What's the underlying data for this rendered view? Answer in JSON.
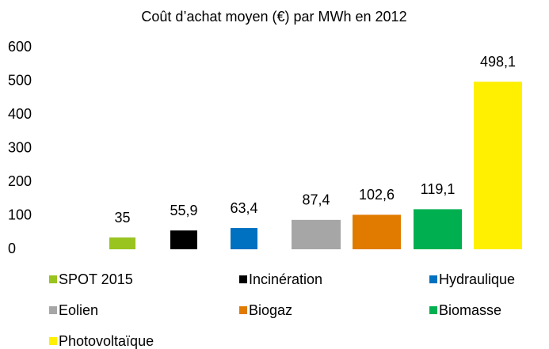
{
  "chart_data": {
    "type": "bar",
    "title": "Coût d’achat moyen (€) par MWh en 2012",
    "ylim": [
      0,
      600
    ],
    "yticks": [
      0,
      100,
      200,
      300,
      400,
      500,
      600
    ],
    "series": [
      {
        "name": "SPOT 2015",
        "color": "#99c31f",
        "values": [
          35
        ]
      },
      {
        "name": "Incinération",
        "color": "#000000",
        "values": [
          55.9
        ],
        "value_labels": [
          "55,9"
        ]
      },
      {
        "name": "Hydraulique",
        "color": "#0070c0",
        "values": [
          63.4
        ],
        "value_labels": [
          "63,4"
        ]
      },
      {
        "name": "Eolien",
        "color": "#a6a6a6",
        "values": [
          87.4
        ],
        "value_labels": [
          "87,4"
        ]
      },
      {
        "name": "Biogaz",
        "color": "#e07b00",
        "values": [
          102.6
        ],
        "value_labels": [
          "102,6"
        ]
      },
      {
        "name": "Biomasse",
        "color": "#00b050",
        "values": [
          119.1
        ],
        "value_labels": [
          "119,1"
        ]
      },
      {
        "name": "Photovoltaïque",
        "color": "#ffef00",
        "values": [
          498.1
        ],
        "value_labels": [
          "498,1"
        ]
      }
    ]
  }
}
